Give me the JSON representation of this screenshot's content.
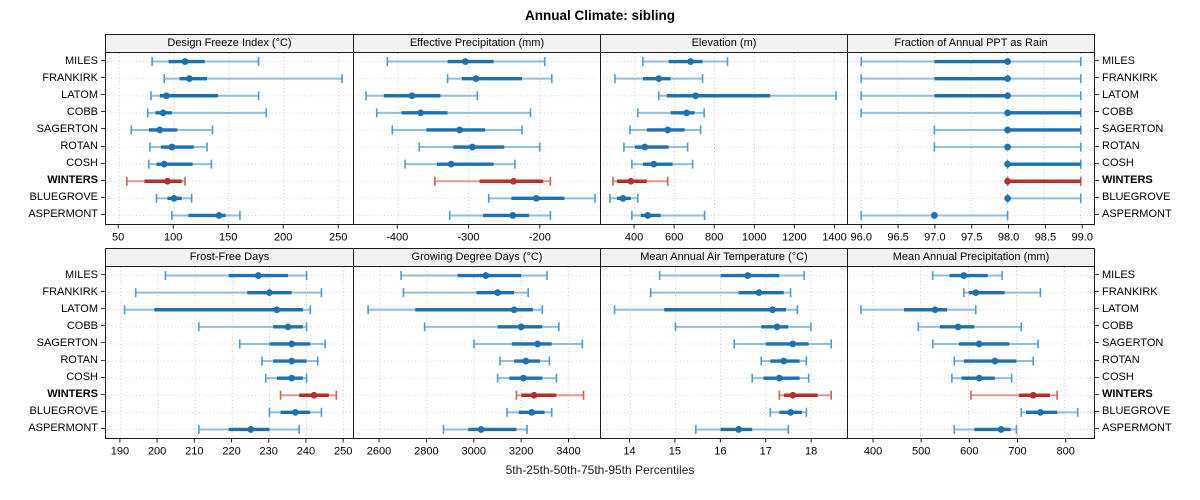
{
  "title": "Annual Climate: sibling",
  "caption": "5th-25th-50th-75th-95th Percentiles",
  "stations": [
    "MILES",
    "FRANKIRK",
    "LATOM",
    "COBB",
    "SAGERTON",
    "ROTAN",
    "COSH",
    "WINTERS",
    "BLUEGROVE",
    "ASPERMONT"
  ],
  "highlight_station": "WINTERS",
  "colors": {
    "blue": {
      "dark": "#1c72b1",
      "light": "#90bfde",
      "cap": "#4e9bcb"
    },
    "red": {
      "dark": "#b5302a",
      "light": "#dc9a96",
      "cap": "#c4625e"
    },
    "header_bg": "#f2f2f2",
    "grid": "#c6c6c6",
    "border": "#1a1a1a"
  },
  "chart_data": {
    "type": "dot-whisker-trellis",
    "percentile_levels": [
      5,
      25,
      50,
      75,
      95
    ],
    "panels": [
      {
        "title": "Design Freeze Index (°C)",
        "row": 0,
        "domain": [
          38,
          263
        ],
        "ticks": [
          50,
          100,
          150,
          200,
          250
        ],
        "tick_labels": [
          "50",
          "100",
          "150",
          "200",
          "250"
        ],
        "values": {
          "MILES": [
            80,
            95,
            110,
            128,
            177
          ],
          "FRANKIRK": [
            91,
            105,
            114,
            130,
            253
          ],
          "LATOM": [
            79,
            87,
            93,
            140,
            177
          ],
          "COBB": [
            76,
            83,
            90,
            98,
            184
          ],
          "SAGERTON": [
            61,
            77,
            87,
            103,
            135
          ],
          "ROTAN": [
            78,
            88,
            98,
            118,
            130
          ],
          "COSH": [
            77,
            84,
            91,
            117,
            134
          ],
          "WINTERS": [
            57,
            73,
            94,
            107,
            110
          ],
          "BLUEGROVE": [
            84,
            94,
            100,
            107,
            116
          ],
          "ASPERMONT": [
            98,
            113,
            141,
            147,
            160
          ]
        }
      },
      {
        "title": "Effective Precipitation (mm)",
        "row": 0,
        "domain": [
          -462,
          -115
        ],
        "ticks": [
          -400,
          -300,
          -200
        ],
        "tick_labels": [
          "-400",
          "-300",
          "-200"
        ],
        "values": {
          "MILES": [
            -415,
            -330,
            -305,
            -265,
            -193
          ],
          "FRANKIRK": [
            -330,
            -310,
            -290,
            -225,
            -183
          ],
          "LATOM": [
            -445,
            -420,
            -380,
            -340,
            -288
          ],
          "COBB": [
            -430,
            -395,
            -368,
            -330,
            -213
          ],
          "SAGERTON": [
            -408,
            -360,
            -313,
            -277,
            -225
          ],
          "ROTAN": [
            -370,
            -322,
            -295,
            -250,
            -200
          ],
          "COSH": [
            -390,
            -345,
            -325,
            -265,
            -235
          ],
          "WINTERS": [
            -348,
            -285,
            -237,
            -195,
            -185
          ],
          "BLUEGROVE": [
            -272,
            -240,
            -205,
            -165,
            -122
          ],
          "ASPERMONT": [
            -327,
            -280,
            -238,
            -215,
            -185
          ]
        }
      },
      {
        "title": "Elevation (m)",
        "row": 0,
        "domain": [
          230,
          1465
        ],
        "ticks": [
          400,
          600,
          800,
          1000,
          1200,
          1400
        ],
        "tick_labels": [
          "400",
          "600",
          "800",
          "1000",
          "1200",
          "1400"
        ],
        "values": {
          "MILES": [
            440,
            570,
            680,
            740,
            865
          ],
          "FRANKIRK": [
            300,
            440,
            520,
            580,
            740
          ],
          "LATOM": [
            520,
            560,
            705,
            1080,
            1410
          ],
          "COBB": [
            415,
            580,
            660,
            700,
            748
          ],
          "SAGERTON": [
            375,
            460,
            565,
            650,
            730
          ],
          "ROTAN": [
            345,
            400,
            450,
            570,
            665
          ],
          "COSH": [
            385,
            440,
            495,
            590,
            690
          ],
          "WINTERS": [
            290,
            310,
            380,
            460,
            565
          ],
          "BLUEGROVE": [
            275,
            310,
            340,
            380,
            415
          ],
          "ASPERMONT": [
            385,
            430,
            465,
            530,
            750
          ]
        }
      },
      {
        "title": "Fraction of Annual PPT as Rain",
        "row": 0,
        "domain": [
          95.82,
          99.18
        ],
        "ticks": [
          96.0,
          96.5,
          97.0,
          97.5,
          98.0,
          98.5,
          99.0
        ],
        "tick_labels": [
          "96.0",
          "96.5",
          "97.0",
          "97.5",
          "98.0",
          "98.5",
          "99.0"
        ],
        "values": {
          "MILES": [
            96.0,
            97.0,
            98.0,
            98.0,
            99.0
          ],
          "FRANKIRK": [
            96.0,
            97.0,
            98.0,
            98.0,
            99.0
          ],
          "LATOM": [
            96.0,
            97.0,
            98.0,
            98.0,
            99.0
          ],
          "COBB": [
            96.0,
            98.0,
            98.0,
            99.0,
            99.0
          ],
          "SAGERTON": [
            97.0,
            98.0,
            98.0,
            99.0,
            99.0
          ],
          "ROTAN": [
            97.0,
            98.0,
            98.0,
            98.0,
            99.0
          ],
          "COSH": [
            98.0,
            98.0,
            98.0,
            99.0,
            99.0
          ],
          "WINTERS": [
            98.0,
            98.0,
            98.0,
            99.0,
            99.0
          ],
          "BLUEGROVE": [
            98.0,
            98.0,
            98.0,
            98.0,
            99.0
          ],
          "ASPERMONT": [
            96.0,
            97.0,
            97.0,
            97.0,
            98.0
          ]
        }
      },
      {
        "title": "Frost-Free Days",
        "row": 1,
        "domain": [
          186,
          252.5
        ],
        "ticks": [
          190,
          200,
          210,
          220,
          230,
          240,
          250
        ],
        "tick_labels": [
          "190",
          "200",
          "210",
          "220",
          "230",
          "240",
          "250"
        ],
        "values": {
          "MILES": [
            202,
            219,
            227,
            235,
            240
          ],
          "FRANKIRK": [
            194,
            224,
            230,
            236,
            244
          ],
          "LATOM": [
            191,
            199,
            232,
            239,
            241
          ],
          "COBB": [
            211,
            231,
            235,
            239,
            240
          ],
          "SAGERTON": [
            222,
            230,
            236,
            241,
            245
          ],
          "ROTAN": [
            228,
            231,
            236,
            240,
            243
          ],
          "COSH": [
            229,
            232,
            236,
            239,
            240
          ],
          "WINTERS": [
            233,
            238,
            242,
            246,
            248
          ],
          "BLUEGROVE": [
            230,
            233,
            237,
            241,
            244
          ],
          "ASPERMONT": [
            211,
            219,
            225,
            230,
            238
          ]
        }
      },
      {
        "title": "Growing Degree Days (°C)",
        "row": 1,
        "domain": [
          2490,
          3535
        ],
        "ticks": [
          2600,
          2800,
          3000,
          3200,
          3400
        ],
        "tick_labels": [
          "2600",
          "2800",
          "3000",
          "3200",
          "3400"
        ],
        "values": {
          "MILES": [
            2690,
            2930,
            3050,
            3200,
            3310
          ],
          "FRANKIRK": [
            2700,
            3010,
            3100,
            3170,
            3230
          ],
          "LATOM": [
            2550,
            2750,
            3170,
            3250,
            3290
          ],
          "COBB": [
            2790,
            3100,
            3200,
            3290,
            3360
          ],
          "SAGERTON": [
            3000,
            3160,
            3270,
            3330,
            3460
          ],
          "ROTAN": [
            3110,
            3170,
            3220,
            3280,
            3320
          ],
          "COSH": [
            3100,
            3150,
            3210,
            3290,
            3350
          ],
          "WINTERS": [
            3180,
            3200,
            3255,
            3350,
            3465
          ],
          "BLUEGROVE": [
            3140,
            3190,
            3245,
            3300,
            3330
          ],
          "ASPERMONT": [
            2870,
            2975,
            3030,
            3180,
            3225
          ]
        }
      },
      {
        "title": "Mean Annual Air Temperature (°C)",
        "row": 1,
        "domain": [
          13.35,
          18.8
        ],
        "ticks": [
          14,
          15,
          16,
          17,
          18
        ],
        "tick_labels": [
          "14",
          "15",
          "16",
          "17",
          "18"
        ],
        "values": {
          "MILES": [
            14.65,
            16.0,
            16.6,
            17.3,
            17.85
          ],
          "FRANKIRK": [
            14.45,
            16.4,
            16.85,
            17.4,
            17.55
          ],
          "LATOM": [
            13.65,
            14.75,
            17.15,
            17.45,
            17.7
          ],
          "COBB": [
            15.0,
            16.9,
            17.25,
            17.5,
            18.0
          ],
          "SAGERTON": [
            16.3,
            17.0,
            17.6,
            17.95,
            18.45
          ],
          "ROTAN": [
            16.9,
            17.1,
            17.4,
            17.75,
            17.9
          ],
          "COSH": [
            16.7,
            16.95,
            17.3,
            17.75,
            17.95
          ],
          "WINTERS": [
            17.3,
            17.4,
            17.6,
            18.15,
            18.45
          ],
          "BLUEGROVE": [
            17.1,
            17.3,
            17.55,
            17.8,
            17.9
          ],
          "ASPERMONT": [
            15.45,
            16.0,
            16.4,
            16.7,
            17.5
          ]
        }
      },
      {
        "title": "Mean Annual Precipitation (mm)",
        "row": 1,
        "domain": [
          348,
          862
        ],
        "ticks": [
          400,
          500,
          600,
          700,
          800
        ],
        "tick_labels": [
          "400",
          "500",
          "600",
          "700",
          "800"
        ],
        "values": {
          "MILES": [
            525,
            560,
            590,
            640,
            670
          ],
          "FRANKIRK": [
            590,
            600,
            615,
            675,
            750
          ],
          "LATOM": [
            375,
            465,
            530,
            555,
            615
          ],
          "COBB": [
            495,
            540,
            578,
            612,
            710
          ],
          "SAGERTON": [
            525,
            580,
            622,
            685,
            745
          ],
          "ROTAN": [
            570,
            590,
            655,
            700,
            735
          ],
          "COSH": [
            565,
            585,
            622,
            655,
            690
          ],
          "WINTERS": [
            605,
            705,
            735,
            770,
            785
          ],
          "BLUEGROVE": [
            710,
            720,
            750,
            785,
            828
          ],
          "ASPERMONT": [
            570,
            612,
            668,
            688,
            700
          ]
        }
      }
    ]
  }
}
